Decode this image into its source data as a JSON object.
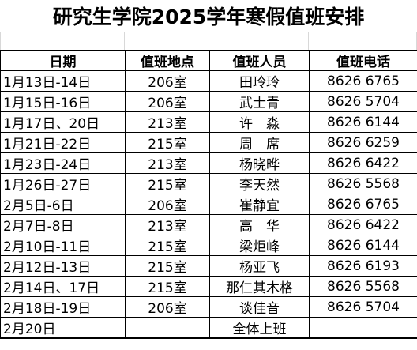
{
  "title": "研究生学院2025学年寒假值班安排",
  "headers": [
    "日期",
    "值班地点",
    "值班人员",
    "值班电话"
  ],
  "rows": [
    {
      "date": "1月13日-14日",
      "room": "206室",
      "person": "田玲玲",
      "phone": "8626 6765"
    },
    {
      "date": "1月15日-16日",
      "room": "206室",
      "person": "武士青",
      "phone": "8626 5704"
    },
    {
      "date": "1月17日、20日",
      "room": "213室",
      "person": "许　淼",
      "phone": "8626 6144"
    },
    {
      "date": "1月21日-22日",
      "room": "215室",
      "person": "周　席",
      "phone": "8626 6259"
    },
    {
      "date": "1月23日-24日",
      "room": "213室",
      "person": "杨晓晔",
      "phone": "8626 6422"
    },
    {
      "date": "1月26日-27日",
      "room": "215室",
      "person": "李天然",
      "phone": "8626 5568"
    },
    {
      "date": "2月5日-6日",
      "room": "206室",
      "person": "崔静宜",
      "phone": "8626 6765"
    },
    {
      "date": "2月7日-8日",
      "room": "213室",
      "person": "高　华",
      "phone": "8626 6422"
    },
    {
      "date": "2月10日-11日",
      "room": "215室",
      "person": "梁炬峰",
      "phone": "8626 6144"
    },
    {
      "date": "2月12日-13日",
      "room": "215室",
      "person": "杨亚飞",
      "phone": "8626 6193"
    },
    {
      "date": "2月14日、17日",
      "room": "215室",
      "person": "那仁其木格",
      "phone": "8626 5568"
    },
    {
      "date": "2月18日-19日",
      "room": "206室",
      "person": "谈佳音",
      "phone": "8626 5704"
    }
  ],
  "last_row": {
    "date": "2月20日",
    "note": "全体上班"
  }
}
